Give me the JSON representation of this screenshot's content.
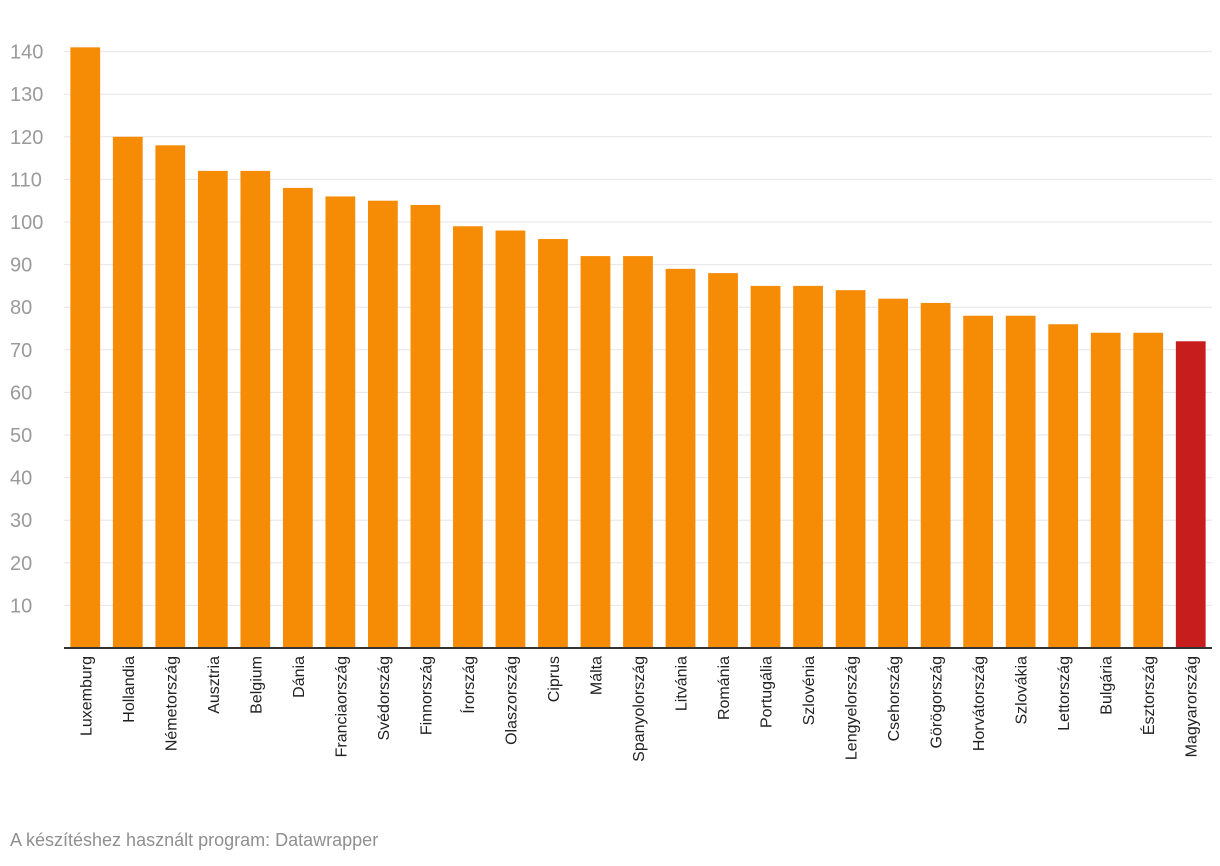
{
  "chart_data": {
    "type": "bar",
    "categories": [
      "Luxemburg",
      "Hollandia",
      "Németország",
      "Ausztria",
      "Belgium",
      "Dánia",
      "Franciaország",
      "Svédország",
      "Finnország",
      "Írország",
      "Olaszország",
      "Ciprus",
      "Málta",
      "Spanyolország",
      "Litvánia",
      "Románia",
      "Portugália",
      "Szlovénia",
      "Lengyelország",
      "Csehország",
      "Görögország",
      "Horvátország",
      "Szlovákia",
      "Lettország",
      "Bulgária",
      "Észtország",
      "Magyarország"
    ],
    "values": [
      141,
      120,
      118,
      112,
      112,
      108,
      106,
      105,
      104,
      99,
      98,
      96,
      92,
      92,
      89,
      88,
      85,
      85,
      84,
      82,
      81,
      78,
      78,
      76,
      74,
      74,
      72
    ],
    "highlight_category": "Magyarország",
    "colors": {
      "bar": "#f68b05",
      "highlight": "#c71e1d",
      "grid": "#e6e6e6",
      "axis": "#333333"
    },
    "yticks": [
      10,
      20,
      30,
      40,
      50,
      60,
      70,
      80,
      90,
      100,
      110,
      120,
      130,
      140
    ],
    "ylim": [
      0,
      140
    ],
    "grid": true,
    "title": "",
    "xlabel": "",
    "ylabel": ""
  },
  "footer": {
    "credit": "A készítéshez használt program: Datawrapper"
  }
}
